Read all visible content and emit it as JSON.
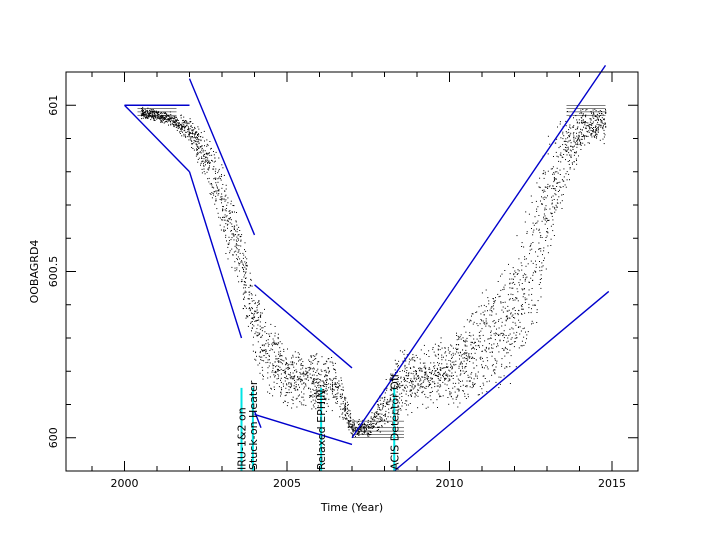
{
  "chart_data": {
    "type": "scatter",
    "title": "",
    "xlabel": "Time (Year)",
    "ylabel": "OOBAGRD4",
    "xlim": [
      1998.2,
      2015.8
    ],
    "ylim": [
      599.9,
      601.1
    ],
    "x_ticks": [
      2000,
      2005,
      2010,
      2015
    ],
    "x_tick_labels": [
      "2000",
      "2005",
      "2010",
      "2015"
    ],
    "y_ticks": [
      600,
      600.5,
      601
    ],
    "y_tick_labels": [
      "600",
      "600.5",
      "601"
    ],
    "grid": false,
    "legend": null,
    "colors": {
      "points": "#000000",
      "fit_lines": "#0000cc",
      "event_markers": "#00e5e5"
    },
    "scatter_envelope": [
      {
        "x": 2000.5,
        "y_low": 600.96,
        "y_high": 601.0
      },
      {
        "x": 2001.0,
        "y_low": 600.95,
        "y_high": 600.99
      },
      {
        "x": 2001.5,
        "y_low": 600.93,
        "y_high": 600.98
      },
      {
        "x": 2002.0,
        "y_low": 600.88,
        "y_high": 600.97
      },
      {
        "x": 2002.5,
        "y_low": 600.76,
        "y_high": 600.92
      },
      {
        "x": 2003.0,
        "y_low": 600.58,
        "y_high": 600.84
      },
      {
        "x": 2003.5,
        "y_low": 600.42,
        "y_high": 600.7
      },
      {
        "x": 2004.0,
        "y_low": 600.22,
        "y_high": 600.45
      },
      {
        "x": 2004.5,
        "y_low": 600.1,
        "y_high": 600.36
      },
      {
        "x": 2005.0,
        "y_low": 600.08,
        "y_high": 600.28
      },
      {
        "x": 2005.5,
        "y_low": 600.08,
        "y_high": 600.27
      },
      {
        "x": 2006.0,
        "y_low": 600.07,
        "y_high": 600.27
      },
      {
        "x": 2006.5,
        "y_low": 600.07,
        "y_high": 600.25
      },
      {
        "x": 2007.0,
        "y_low": 600.0,
        "y_high": 600.06
      },
      {
        "x": 2007.5,
        "y_low": 600.0,
        "y_high": 600.06
      },
      {
        "x": 2008.0,
        "y_low": 600.02,
        "y_high": 600.18
      },
      {
        "x": 2008.5,
        "y_low": 600.06,
        "y_high": 600.28
      },
      {
        "x": 2009.0,
        "y_low": 600.08,
        "y_high": 600.28
      },
      {
        "x": 2009.5,
        "y_low": 600.08,
        "y_high": 600.3
      },
      {
        "x": 2010.0,
        "y_low": 600.08,
        "y_high": 600.32
      },
      {
        "x": 2010.5,
        "y_low": 600.1,
        "y_high": 600.36
      },
      {
        "x": 2011.0,
        "y_low": 600.1,
        "y_high": 600.46
      },
      {
        "x": 2011.5,
        "y_low": 600.12,
        "y_high": 600.52
      },
      {
        "x": 2012.0,
        "y_low": 600.16,
        "y_high": 600.6
      },
      {
        "x": 2012.5,
        "y_low": 600.25,
        "y_high": 600.76
      },
      {
        "x": 2013.0,
        "y_low": 600.5,
        "y_high": 600.93
      },
      {
        "x": 2013.5,
        "y_low": 600.7,
        "y_high": 600.99
      },
      {
        "x": 2014.0,
        "y_low": 600.85,
        "y_high": 601.0
      },
      {
        "x": 2014.5,
        "y_low": 600.88,
        "y_high": 601.0
      },
      {
        "x": 2014.8,
        "y_low": 600.88,
        "y_high": 601.0
      }
    ],
    "fit_lines": [
      {
        "x": [
          2000.0,
          2002.0
        ],
        "y": [
          601.0,
          601.0
        ]
      },
      {
        "x": [
          2000.0,
          2002.0
        ],
        "y": [
          601.0,
          600.8
        ]
      },
      {
        "x": [
          2002.0,
          2003.6
        ],
        "y": [
          600.8,
          600.3
        ]
      },
      {
        "x": [
          2002.0,
          2004.0
        ],
        "y": [
          601.08,
          600.61
        ]
      },
      {
        "x": [
          2004.0,
          2007.0
        ],
        "y": [
          600.46,
          600.21
        ]
      },
      {
        "x": [
          2004.0,
          2007.0
        ],
        "y": [
          600.07,
          599.98
        ]
      },
      {
        "x": [
          2004.0,
          2004.2
        ],
        "y": [
          600.08,
          600.03
        ]
      },
      {
        "x": [
          2007.0,
          2014.8
        ],
        "y": [
          600.0,
          601.12
        ]
      },
      {
        "x": [
          2008.3,
          2014.9
        ],
        "y": [
          599.9,
          600.44
        ]
      }
    ],
    "events": [
      {
        "x": 2003.6,
        "label": "IRU-1&2 on"
      },
      {
        "x": 2003.95,
        "label": "Stuck-on Heater"
      },
      {
        "x": 2006.05,
        "label": "Relaxed EPHIN"
      },
      {
        "x": 2008.3,
        "label": "ACIS Detector Off"
      }
    ]
  }
}
